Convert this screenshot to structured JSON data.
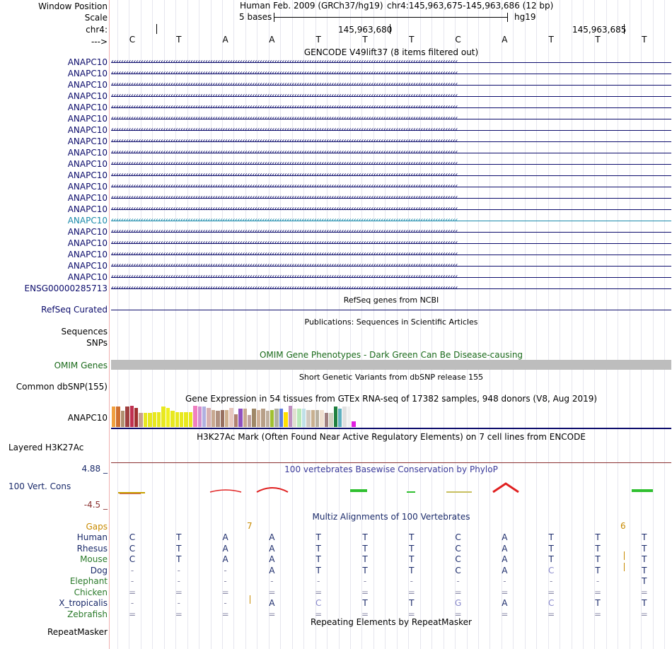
{
  "header": {
    "window_position_label": "Window Position",
    "scale_label": "Scale",
    "chrom_label": "chr4:",
    "strand_label": "--->",
    "assembly": "Human Feb. 2009 (GRCh37/hg19)",
    "position": "chr4:145,963,675-145,963,686 (12 bp)",
    "scale_text": "5 bases",
    "db": "hg19",
    "coord_1": "145,963,680",
    "coord_2": "145,963,685"
  },
  "bases": [
    "C",
    "T",
    "A",
    "A",
    "T",
    "T",
    "T",
    "C",
    "A",
    "T",
    "T",
    "T"
  ],
  "gencode": {
    "title": "GENCODE V49lift37 (8 items filtered out)",
    "items": [
      {
        "name": "ANAPC10",
        "highlight": false
      },
      {
        "name": "ANAPC10",
        "highlight": false
      },
      {
        "name": "ANAPC10",
        "highlight": false
      },
      {
        "name": "ANAPC10",
        "highlight": false
      },
      {
        "name": "ANAPC10",
        "highlight": false
      },
      {
        "name": "ANAPC10",
        "highlight": false
      },
      {
        "name": "ANAPC10",
        "highlight": false
      },
      {
        "name": "ANAPC10",
        "highlight": false
      },
      {
        "name": "ANAPC10",
        "highlight": false
      },
      {
        "name": "ANAPC10",
        "highlight": false
      },
      {
        "name": "ANAPC10",
        "highlight": false
      },
      {
        "name": "ANAPC10",
        "highlight": false
      },
      {
        "name": "ANAPC10",
        "highlight": false
      },
      {
        "name": "ANAPC10",
        "highlight": false
      },
      {
        "name": "ANAPC10",
        "highlight": true
      },
      {
        "name": "ANAPC10",
        "highlight": false
      },
      {
        "name": "ANAPC10",
        "highlight": false
      },
      {
        "name": "ANAPC10",
        "highlight": false
      },
      {
        "name": "ANAPC10",
        "highlight": false
      },
      {
        "name": "ANAPC10",
        "highlight": false
      },
      {
        "name": "ENSG00000285713",
        "highlight": false
      }
    ]
  },
  "refseq": {
    "title": "RefSeq genes from NCBI",
    "label": "RefSeq Curated"
  },
  "publications": {
    "title": "Publications: Sequences in Scientific Articles",
    "label": "Sequences"
  },
  "snps": {
    "label": "SNPs"
  },
  "omim": {
    "title": "OMIM Gene Phenotypes - Dark Green Can Be Disease-causing",
    "label": "OMIM Genes"
  },
  "dbsnp": {
    "title": "Short Genetic Variants from dbSNP release 155",
    "label": "Common dbSNP(155)"
  },
  "gtex": {
    "title": "Gene Expression in 54 tissues from GTEx RNA-seq of 17382 samples, 948 donors (V8, Aug 2019)",
    "label": "ANAPC10",
    "values": [
      0.95,
      0.95,
      0.75,
      0.95,
      1.0,
      0.9,
      0.65,
      0.65,
      0.65,
      0.7,
      0.7,
      0.95,
      0.9,
      0.75,
      0.7,
      0.7,
      0.7,
      0.7,
      1.0,
      0.95,
      0.95,
      0.9,
      0.8,
      0.75,
      0.8,
      0.8,
      0.9,
      0.6,
      0.85,
      0.85,
      0.55,
      0.85,
      0.8,
      0.85,
      0.75,
      0.8,
      0.85,
      0.85,
      0.7,
      1.0,
      0.85,
      0.85,
      0.85,
      0.8,
      0.8,
      0.8,
      0.8,
      0.65,
      0.65,
      0.95,
      0.85,
      0.95,
      0.95,
      0.25
    ],
    "colors": [
      "#f0a040",
      "#d07030",
      "#b09070",
      "#a04040",
      "#c03050",
      "#a03030",
      "#c8a090",
      "#e8e820",
      "#e8e820",
      "#e8e820",
      "#e8e820",
      "#e8e820",
      "#f0f020",
      "#e8e820",
      "#e8e820",
      "#e8e820",
      "#e8e820",
      "#e8e820",
      "#f080c0",
      "#d090d0",
      "#b0b0e0",
      "#d8b0b0",
      "#c8a890",
      "#b09080",
      "#987060",
      "#d0b090",
      "#e8c8c0",
      "#b08070",
      "#9050c0",
      "#c8a890",
      "#c0a0a0",
      "#a08868",
      "#d0b098",
      "#b8a088",
      "#c0b0a0",
      "#a0c030",
      "#b0b0a0",
      "#6080e0",
      "#ffe000",
      "#c090c0",
      "#e0e0d0",
      "#b8e8b8",
      "#c0e0e8",
      "#d0c8c0",
      "#c8b090",
      "#b8b0a0",
      "#f0e0d0",
      "#a08080",
      "#d0d0c0",
      "#208040",
      "#60b0c0",
      "#e0e0e0",
      "#f0f0f0",
      "#e020e0"
    ]
  },
  "h3k27ac": {
    "title": "H3K27Ac Mark (Often Found Near Active Regulatory Elements) on 7 cell lines from ENCODE",
    "label": "Layered H3K27Ac"
  },
  "phylop": {
    "title": "100 vertebrates Basewise Conservation by PhyloP",
    "label": "100 Vert. Cons",
    "ymax": "4.88 _",
    "ymin": "-4.5 _"
  },
  "multiz": {
    "title": "Multiz Alignments of 100 Vertebrates",
    "gaps_label": "Gaps",
    "gap_7": "7",
    "gap_6": "6",
    "species": [
      {
        "name": "Human",
        "color": "#1a2a6a",
        "bases": [
          "C",
          "T",
          "A",
          "A",
          "T",
          "T",
          "T",
          "C",
          "A",
          "T",
          "T",
          "T"
        ]
      },
      {
        "name": "Rhesus",
        "color": "#1a2a6a",
        "bases": [
          "C",
          "T",
          "A",
          "A",
          "T",
          "T",
          "T",
          "C",
          "A",
          "T",
          "T",
          "T"
        ]
      },
      {
        "name": "Mouse",
        "color": "#2a7a2a",
        "bases": [
          "C",
          "T",
          "A",
          "A",
          "T",
          "T",
          "T",
          "C",
          "A",
          "T",
          "T",
          "T"
        ]
      },
      {
        "name": "Dog",
        "color": "#1a2a6a",
        "bases": [
          "-",
          "-",
          "-",
          "A",
          "T",
          "T",
          "T",
          "C",
          "A",
          "C",
          "T",
          "T"
        ]
      },
      {
        "name": "Elephant",
        "color": "#2a7a2a",
        "bases": [
          "-",
          "-",
          "-",
          "-",
          "-",
          "-",
          "-",
          "-",
          "-",
          "-",
          "-",
          "T"
        ]
      },
      {
        "name": "Chicken",
        "color": "#2a7a2a",
        "bases": [
          "=",
          "=",
          "=",
          "=",
          "=",
          "=",
          "=",
          "=",
          "=",
          "=",
          "=",
          "="
        ]
      },
      {
        "name": "X_tropicalis",
        "color": "#1a2a6a",
        "bases": [
          "-",
          "-",
          "-",
          "A",
          "C",
          "T",
          "T",
          "G",
          "A",
          "C",
          "T",
          "T"
        ]
      },
      {
        "name": "Zebrafish",
        "color": "#2a7a2a",
        "bases": [
          "=",
          "=",
          "=",
          "=",
          "=",
          "=",
          "=",
          "=",
          "=",
          "=",
          "=",
          "="
        ]
      }
    ]
  },
  "repeatmasker": {
    "title": "Repeating Elements by RepeatMasker",
    "label": "RepeatMasker"
  },
  "colors": {
    "gene": "#0b0b6b",
    "highlight": "#1a8aaa",
    "omim": "#1a6a1a",
    "phylop": "#3a3a9a",
    "gaps": "#c88a00",
    "h3k": "#8a3030"
  }
}
